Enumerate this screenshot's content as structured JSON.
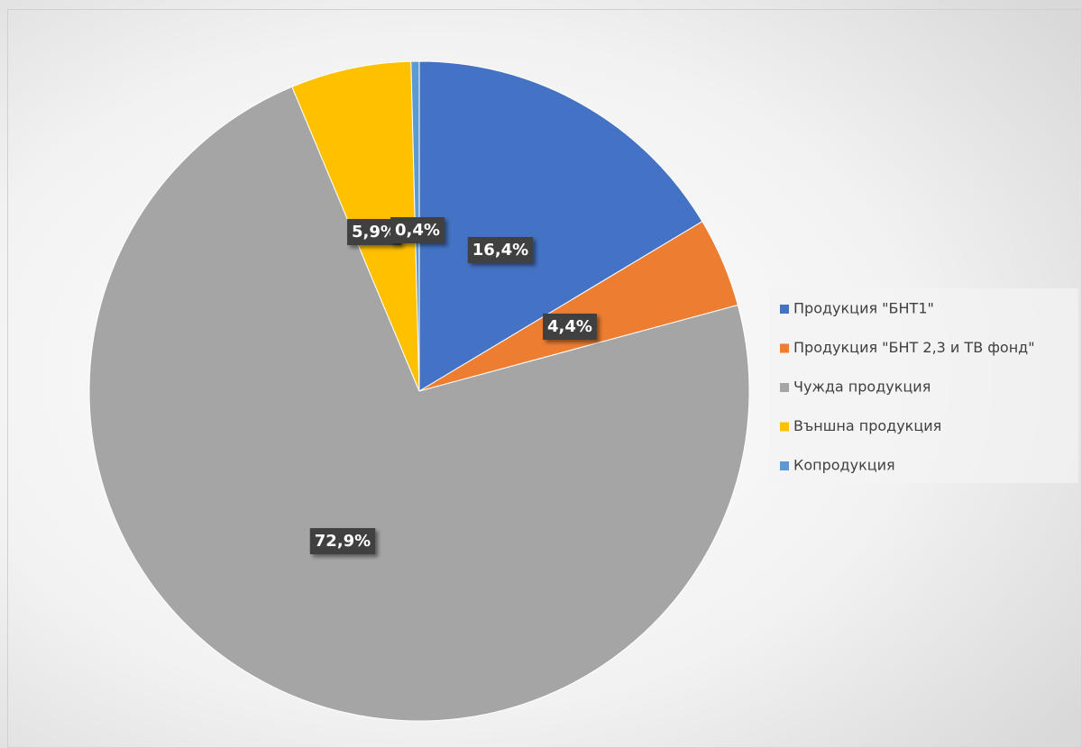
{
  "chart_data": {
    "type": "pie",
    "categories": [
      "Продукция \"БНТ1\"",
      "Продукция \"БНТ 2,3  и ТВ фонд\"",
      "Чужда продукция",
      "Външна продукция",
      "Копродукция"
    ],
    "values": [
      16.4,
      4.4,
      72.9,
      5.9,
      0.4
    ],
    "value_labels": [
      "16,4%",
      "4,4%",
      "72,9%",
      "5,9%",
      "0,4%"
    ],
    "colors": [
      "#4472c4",
      "#ed7d31",
      "#a5a5a5",
      "#ffc000",
      "#5b9bd5"
    ],
    "legend": "right"
  }
}
